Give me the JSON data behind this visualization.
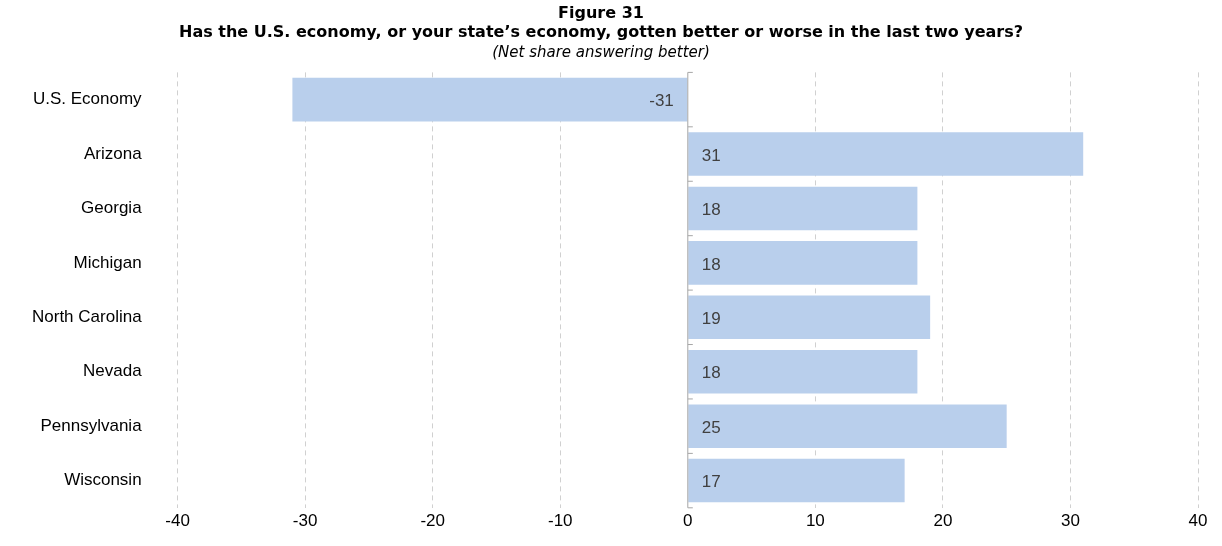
{
  "chart_data": {
    "type": "bar",
    "orientation": "horizontal",
    "title": "Figure 31\nHas the U.S. economy, or your state’s economy, gotten better or worse in the last two years?",
    "subtitle": "(Net share answering better)",
    "categories": [
      "U.S. Economy",
      "Arizona",
      "Georgia",
      "Michigan",
      "North Carolina",
      "Nevada",
      "Pennsylvania",
      "Wisconsin"
    ],
    "values": [
      -31,
      31,
      18,
      18,
      19,
      18,
      25,
      17
    ],
    "color": "#b9cfec",
    "xlim": [
      -40,
      40
    ],
    "xticks": [
      -40,
      -30,
      -20,
      -10,
      0,
      10,
      20,
      30,
      40
    ],
    "grid": "x",
    "data_labels": true,
    "legend": false
  }
}
